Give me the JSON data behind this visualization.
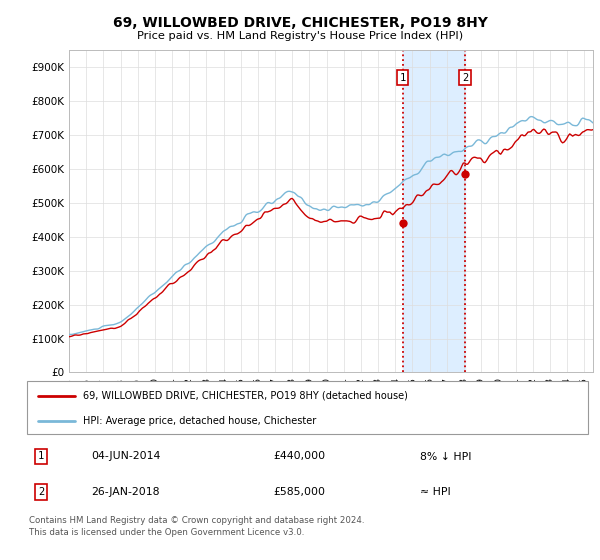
{
  "title": "69, WILLOWBED DRIVE, CHICHESTER, PO19 8HY",
  "subtitle": "Price paid vs. HM Land Registry's House Price Index (HPI)",
  "ylabel_ticks": [
    "£0",
    "£100K",
    "£200K",
    "£300K",
    "£400K",
    "£500K",
    "£600K",
    "£700K",
    "£800K",
    "£900K"
  ],
  "ytick_values": [
    0,
    100000,
    200000,
    300000,
    400000,
    500000,
    600000,
    700000,
    800000,
    900000
  ],
  "ylim": [
    0,
    950000
  ],
  "xlim_start": 1995.0,
  "xlim_end": 2025.5,
  "transaction1": {
    "date_num": 2014.42,
    "price": 440000,
    "label": "1"
  },
  "transaction2": {
    "date_num": 2018.07,
    "price": 585000,
    "label": "2"
  },
  "annotation1_date": "04-JUN-2014",
  "annotation1_price": "£440,000",
  "annotation1_rel": "8% ↓ HPI",
  "annotation2_date": "26-JAN-2018",
  "annotation2_price": "£585,000",
  "annotation2_rel": "≈ HPI",
  "legend_line1": "69, WILLOWBED DRIVE, CHICHESTER, PO19 8HY (detached house)",
  "legend_line2": "HPI: Average price, detached house, Chichester",
  "footer": "Contains HM Land Registry data © Crown copyright and database right 2024.\nThis data is licensed under the Open Government Licence v3.0.",
  "hpi_color": "#7ab8d8",
  "price_color": "#cc0000",
  "highlight_color": "#ddeeff",
  "vline_color": "#cc0000",
  "background_color": "#ffffff",
  "grid_color": "#dddddd"
}
